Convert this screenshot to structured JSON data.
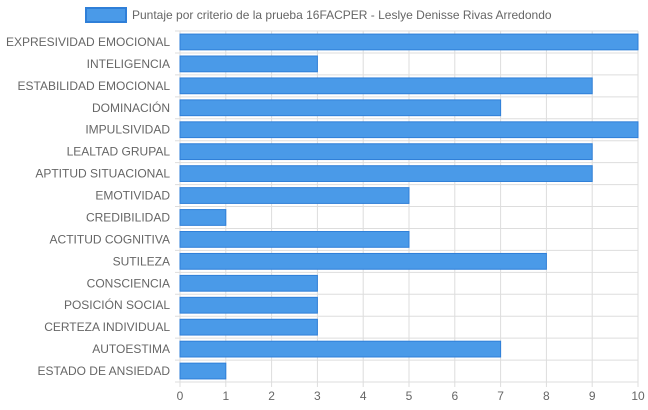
{
  "chart_data": {
    "type": "bar",
    "orientation": "horizontal",
    "legend_position": "top-center",
    "grid": true,
    "categories": [
      "EXPRESIVIDAD EMOCIONAL",
      "INTELIGENCIA",
      "ESTABILIDAD EMOCIONAL",
      "DOMINACIÓN",
      "IMPULSIVIDAD",
      "LEALTAD GRUPAL",
      "APTITUD SITUACIONAL",
      "EMOTIVIDAD",
      "CREDIBILIDAD",
      "ACTITUD COGNITIVA",
      "SUTILEZA",
      "CONSCIENCIA",
      "POSICIÓN SOCIAL",
      "CERTEZA INDIVIDUAL",
      "AUTOESTIMA",
      "ESTADO DE ANSIEDAD"
    ],
    "series": [
      {
        "name": "Puntaje por criterio de la prueba 16FACPER - Leslye Denisse Rivas Arredondo",
        "values": [
          10,
          3,
          9,
          7,
          10,
          9,
          9,
          5,
          1,
          5,
          8,
          3,
          3,
          3,
          7,
          1
        ],
        "color": "#4a9ae8",
        "border_color": "#2f7fd8"
      }
    ],
    "xlim": [
      0,
      10
    ],
    "xticks": [
      "0",
      "1",
      "2",
      "3",
      "4",
      "5",
      "6",
      "7",
      "8",
      "9",
      "10"
    ],
    "grid_color": "#dddddd",
    "label_color": "#666666"
  }
}
